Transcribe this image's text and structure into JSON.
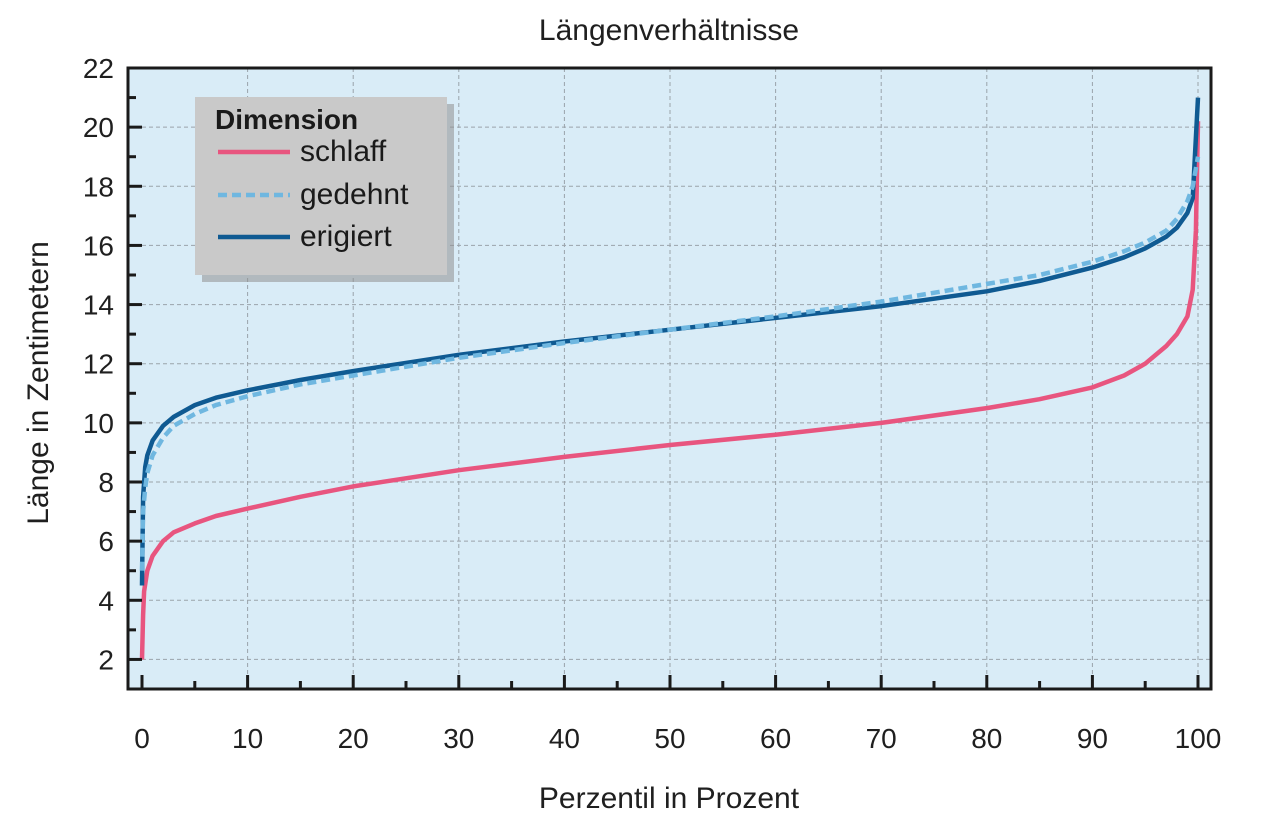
{
  "chart_data": {
    "type": "line",
    "title": "Längenverhältnisse",
    "xlabel": "Perzentil in Prozent",
    "ylabel": "Länge in Zentimetern",
    "xlim": [
      0,
      100
    ],
    "ylim": [
      1,
      22
    ],
    "xticks": [
      0,
      10,
      20,
      30,
      40,
      50,
      60,
      70,
      80,
      90,
      100
    ],
    "yticks": [
      2,
      4,
      6,
      8,
      10,
      12,
      14,
      16,
      18,
      20,
      22
    ],
    "grid": true,
    "background": "#d9ecf7",
    "legend": {
      "title": "Dimension",
      "position": "top-left"
    },
    "series": [
      {
        "name": "schlaff",
        "color": "#e8557f",
        "style": "solid",
        "x": [
          0,
          0.1,
          0.2,
          0.5,
          1,
          2,
          3,
          5,
          7,
          10,
          15,
          20,
          30,
          40,
          50,
          60,
          70,
          80,
          85,
          90,
          93,
          95,
          97,
          98,
          99,
          99.5,
          99.8,
          100
        ],
        "y": [
          2.0,
          3.5,
          4.3,
          5.0,
          5.5,
          6.0,
          6.3,
          6.6,
          6.85,
          7.1,
          7.5,
          7.85,
          8.4,
          8.85,
          9.25,
          9.6,
          10.0,
          10.5,
          10.8,
          11.2,
          11.6,
          12.0,
          12.6,
          13.0,
          13.6,
          14.5,
          16.5,
          20.2
        ]
      },
      {
        "name": "gedehnt",
        "color": "#6fb7e0",
        "style": "dashed",
        "x": [
          0,
          0.1,
          0.3,
          0.5,
          1,
          2,
          3,
          5,
          7,
          10,
          15,
          20,
          30,
          40,
          50,
          60,
          70,
          80,
          85,
          90,
          93,
          95,
          97,
          98,
          99,
          99.5,
          100
        ],
        "y": [
          5.0,
          7.0,
          7.8,
          8.3,
          8.9,
          9.5,
          9.9,
          10.3,
          10.6,
          10.9,
          11.3,
          11.6,
          12.2,
          12.7,
          13.15,
          13.6,
          14.1,
          14.7,
          15.0,
          15.45,
          15.8,
          16.1,
          16.5,
          16.9,
          17.5,
          18.0,
          19.0
        ]
      },
      {
        "name": "erigiert",
        "color": "#0f5a92",
        "style": "solid",
        "x": [
          0,
          0.1,
          0.3,
          0.5,
          1,
          2,
          3,
          5,
          7,
          10,
          15,
          20,
          30,
          40,
          50,
          60,
          70,
          80,
          85,
          90,
          93,
          95,
          97,
          98,
          99,
          99.5,
          100
        ],
        "y": [
          4.5,
          7.5,
          8.5,
          8.9,
          9.4,
          9.9,
          10.2,
          10.6,
          10.85,
          11.1,
          11.45,
          11.75,
          12.3,
          12.75,
          13.15,
          13.55,
          13.95,
          14.45,
          14.8,
          15.25,
          15.6,
          15.9,
          16.3,
          16.6,
          17.1,
          17.6,
          21.0
        ]
      }
    ]
  }
}
